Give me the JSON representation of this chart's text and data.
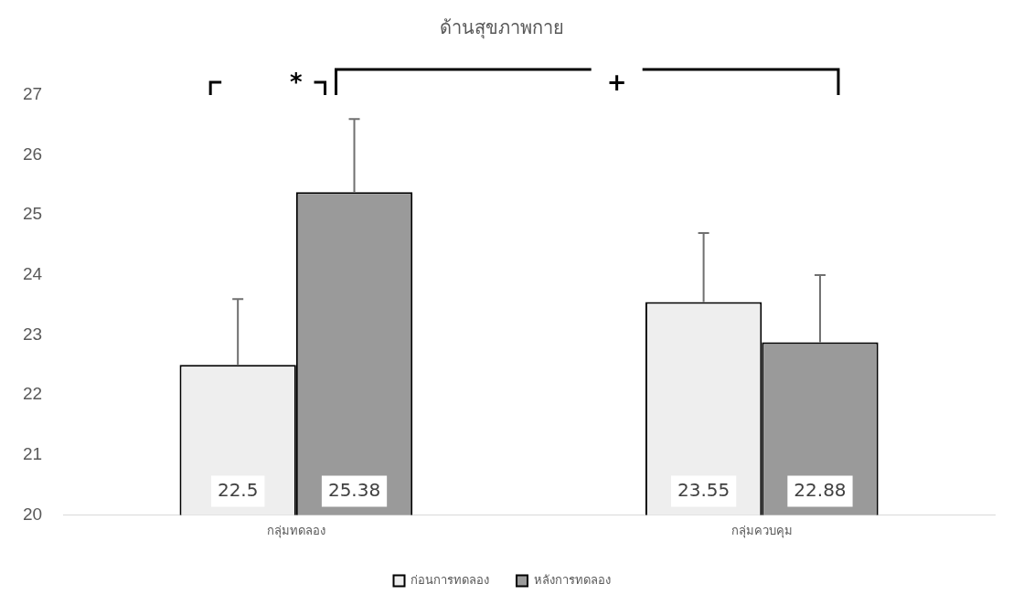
{
  "chart_data": {
    "type": "bar",
    "title": "ด้านสุขภาพกาย",
    "categories": [
      "กลุ่มทดลอง",
      "กลุ่มควบคุม"
    ],
    "series": [
      {
        "name": "ก่อนการทดลอง",
        "color": "#eeeeee",
        "values": [
          22.5,
          23.55
        ],
        "errors": [
          [
            22.5,
            23.6
          ],
          [
            23.55,
            24.7
          ]
        ]
      },
      {
        "name": "หลังการทดลอง",
        "color": "#9a9a9a",
        "values": [
          25.38,
          22.88
        ],
        "errors": [
          [
            25.38,
            26.6
          ],
          [
            22.88,
            24.0
          ]
        ]
      }
    ],
    "ylim": [
      20,
      27
    ],
    "yticks": [
      20,
      21,
      22,
      23,
      24,
      25,
      26,
      27
    ],
    "grid": false,
    "legend": "bottom",
    "data_labels": true,
    "annotations": [
      "*",
      "+"
    ]
  }
}
